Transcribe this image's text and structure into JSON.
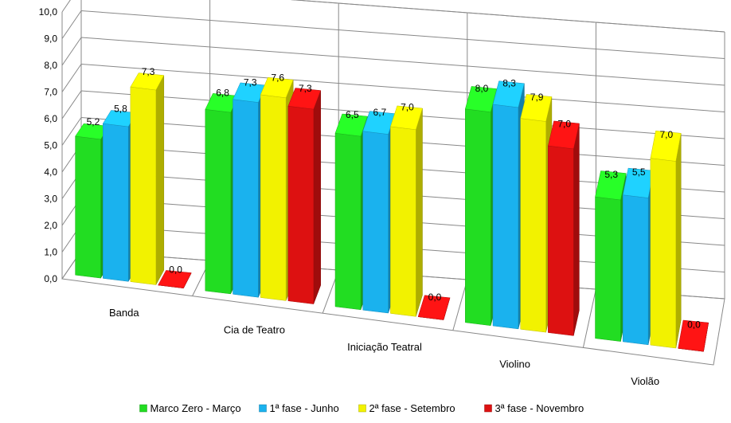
{
  "chart_data": {
    "type": "bar",
    "ylim": [
      0,
      10
    ],
    "ytick_step": 1,
    "y_ticks": [
      "0,0",
      "1,0",
      "2,0",
      "3,0",
      "4,0",
      "5,0",
      "6,0",
      "7,0",
      "8,0",
      "9,0",
      "10,0"
    ],
    "categories": [
      "Banda",
      "Cia de Teatro",
      "Iniciação Teatral",
      "Violino",
      "Violão"
    ],
    "series": [
      {
        "name": "Marco Zero - Março",
        "color": "#22dd22",
        "values": [
          5.2,
          6.8,
          6.5,
          8.0,
          5.3
        ],
        "labels": [
          "5,2",
          "6,8",
          "6,5",
          "8,0",
          "5,3"
        ]
      },
      {
        "name": "1ª fase - Junho",
        "color": "#1ab2ee",
        "values": [
          5.8,
          7.3,
          6.7,
          8.3,
          5.5
        ],
        "labels": [
          "5,8",
          "7,3",
          "6,7",
          "8,3",
          "5,5"
        ]
      },
      {
        "name": "2ª fase - Setembro",
        "color": "#f2f200",
        "values": [
          7.3,
          7.6,
          7.0,
          7.9,
          7.0
        ],
        "labels": [
          "7,3",
          "7,6",
          "7,0",
          "7,9",
          "7,0"
        ]
      },
      {
        "name": "3ª fase - Novembro",
        "color": "#dd1111",
        "values": [
          0.0,
          7.3,
          0.0,
          7.0,
          0.0
        ],
        "labels": [
          "0,0",
          "7,3",
          "0,0",
          "7,0",
          "0,0"
        ]
      }
    ],
    "grid": true,
    "legend": "bottom",
    "style": "3d-perspective"
  }
}
